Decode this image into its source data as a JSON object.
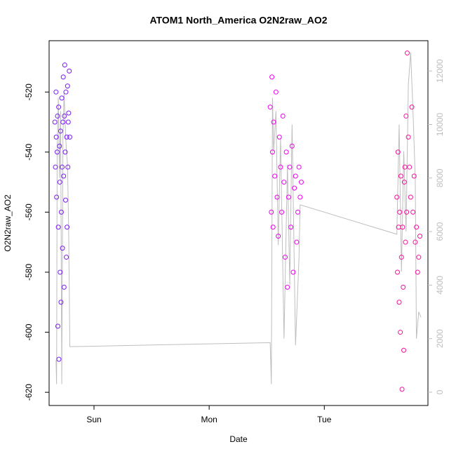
{
  "chart_data": {
    "type": "scatter",
    "title": "ATOM1 North_America O2N2raw_AO2",
    "x_label": "Date",
    "y_label": "O2N2raw_AO2",
    "xlim": [
      0.61,
      3.9
    ],
    "xticks": [
      {
        "value": 1,
        "label": "Sun"
      },
      {
        "value": 2,
        "label": "Mon"
      },
      {
        "value": 3,
        "label": "Tue"
      }
    ],
    "ylim": [
      -624.4,
      -502.9
    ],
    "yticks": [
      -520,
      -540,
      -560,
      -580,
      -600,
      -620
    ],
    "y2lim": [
      -498,
      13132
    ],
    "y2ticks": [
      0,
      2000,
      4000,
      6000,
      8000,
      10000,
      12000
    ],
    "y2_color": "#bebebe",
    "series": [
      {
        "type": "line",
        "axis": "y2",
        "color": "#bebebe",
        "x": [
          0.67,
          0.675,
          0.68,
          0.69,
          0.7,
          0.71,
          0.72,
          0.73,
          0.74,
          0.75,
          0.76,
          0.77,
          0.78,
          0.79,
          2.53,
          2.54,
          2.55,
          2.56,
          2.58,
          2.6,
          2.62,
          2.65,
          2.68,
          2.7,
          2.72,
          2.75,
          2.78,
          2.79,
          3.63,
          3.65,
          3.67,
          3.69,
          3.71,
          3.73,
          3.75,
          3.77,
          3.79,
          3.8,
          3.82,
          3.84
        ],
        "values": [
          1200,
          300,
          9000,
          11000,
          8000,
          10500,
          300,
          9500,
          11200,
          10000,
          9000,
          8500,
          6000,
          1700,
          1850,
          300,
          11000,
          9000,
          10500,
          5500,
          9500,
          2000,
          8500,
          4000,
          10000,
          1750,
          5000,
          7000,
          5900,
          10000,
          4500,
          9000,
          6000,
          11500,
          12700,
          10500,
          8000,
          2000,
          3000,
          2800
        ]
      },
      {
        "type": "scatter",
        "color": "#7a1cf5",
        "x": [
          0.66,
          0.665,
          0.67,
          0.672,
          0.675,
          0.68,
          0.683,
          0.686,
          0.69,
          0.693,
          0.695,
          0.7,
          0.703,
          0.706,
          0.71,
          0.713,
          0.716,
          0.72,
          0.723,
          0.726,
          0.73,
          0.733,
          0.736,
          0.74,
          0.743,
          0.746,
          0.75,
          0.753,
          0.756,
          0.76,
          0.763,
          0.766,
          0.77,
          0.773,
          0.776,
          0.78,
          0.785,
          0.79
        ],
        "values": [
          -530,
          -545,
          -520,
          -535,
          -555,
          -540,
          -528,
          -598,
          -565,
          -525,
          -609,
          -538,
          -550,
          -580,
          -533,
          -590,
          -560,
          -522,
          -545,
          -572,
          -530,
          -515,
          -548,
          -585,
          -528,
          -511,
          -540,
          -556,
          -520,
          -575,
          -535,
          -565,
          -518,
          -545,
          -530,
          -527,
          -513,
          -535
        ]
      },
      {
        "type": "scatter",
        "color": "#ee00f0",
        "x": [
          2.53,
          2.54,
          2.545,
          2.55,
          2.555,
          2.56,
          2.57,
          2.58,
          2.59,
          2.6,
          2.61,
          2.62,
          2.63,
          2.64,
          2.65,
          2.66,
          2.67,
          2.68,
          2.69,
          2.7,
          2.71,
          2.72,
          2.73,
          2.74,
          2.75,
          2.76,
          2.77,
          2.78,
          2.79,
          2.8
        ],
        "values": [
          -525,
          -560,
          -515,
          -540,
          -565,
          -530,
          -548,
          -520,
          -555,
          -568,
          -535,
          -545,
          -560,
          -528,
          -550,
          -575,
          -540,
          -585,
          -555,
          -545,
          -565,
          -538,
          -580,
          -552,
          -548,
          -570,
          -560,
          -545,
          -555,
          -550
        ]
      },
      {
        "type": "scatter",
        "color": "#f5109a",
        "x": [
          3.63,
          3.635,
          3.64,
          3.645,
          3.65,
          3.655,
          3.66,
          3.665,
          3.67,
          3.675,
          3.68,
          3.685,
          3.69,
          3.695,
          3.7,
          3.705,
          3.71,
          3.715,
          3.72,
          3.73,
          3.74,
          3.75,
          3.76,
          3.77,
          3.78,
          3.79,
          3.8,
          3.81,
          3.82,
          3.83
        ],
        "values": [
          -555,
          -580,
          -540,
          -565,
          -590,
          -560,
          -600,
          -548,
          -575,
          -619,
          -565,
          -585,
          -606,
          -550,
          -545,
          -570,
          -528,
          -560,
          -507,
          -535,
          -545,
          -555,
          -525,
          -560,
          -548,
          -570,
          -565,
          -580,
          -575,
          -568
        ]
      }
    ]
  }
}
